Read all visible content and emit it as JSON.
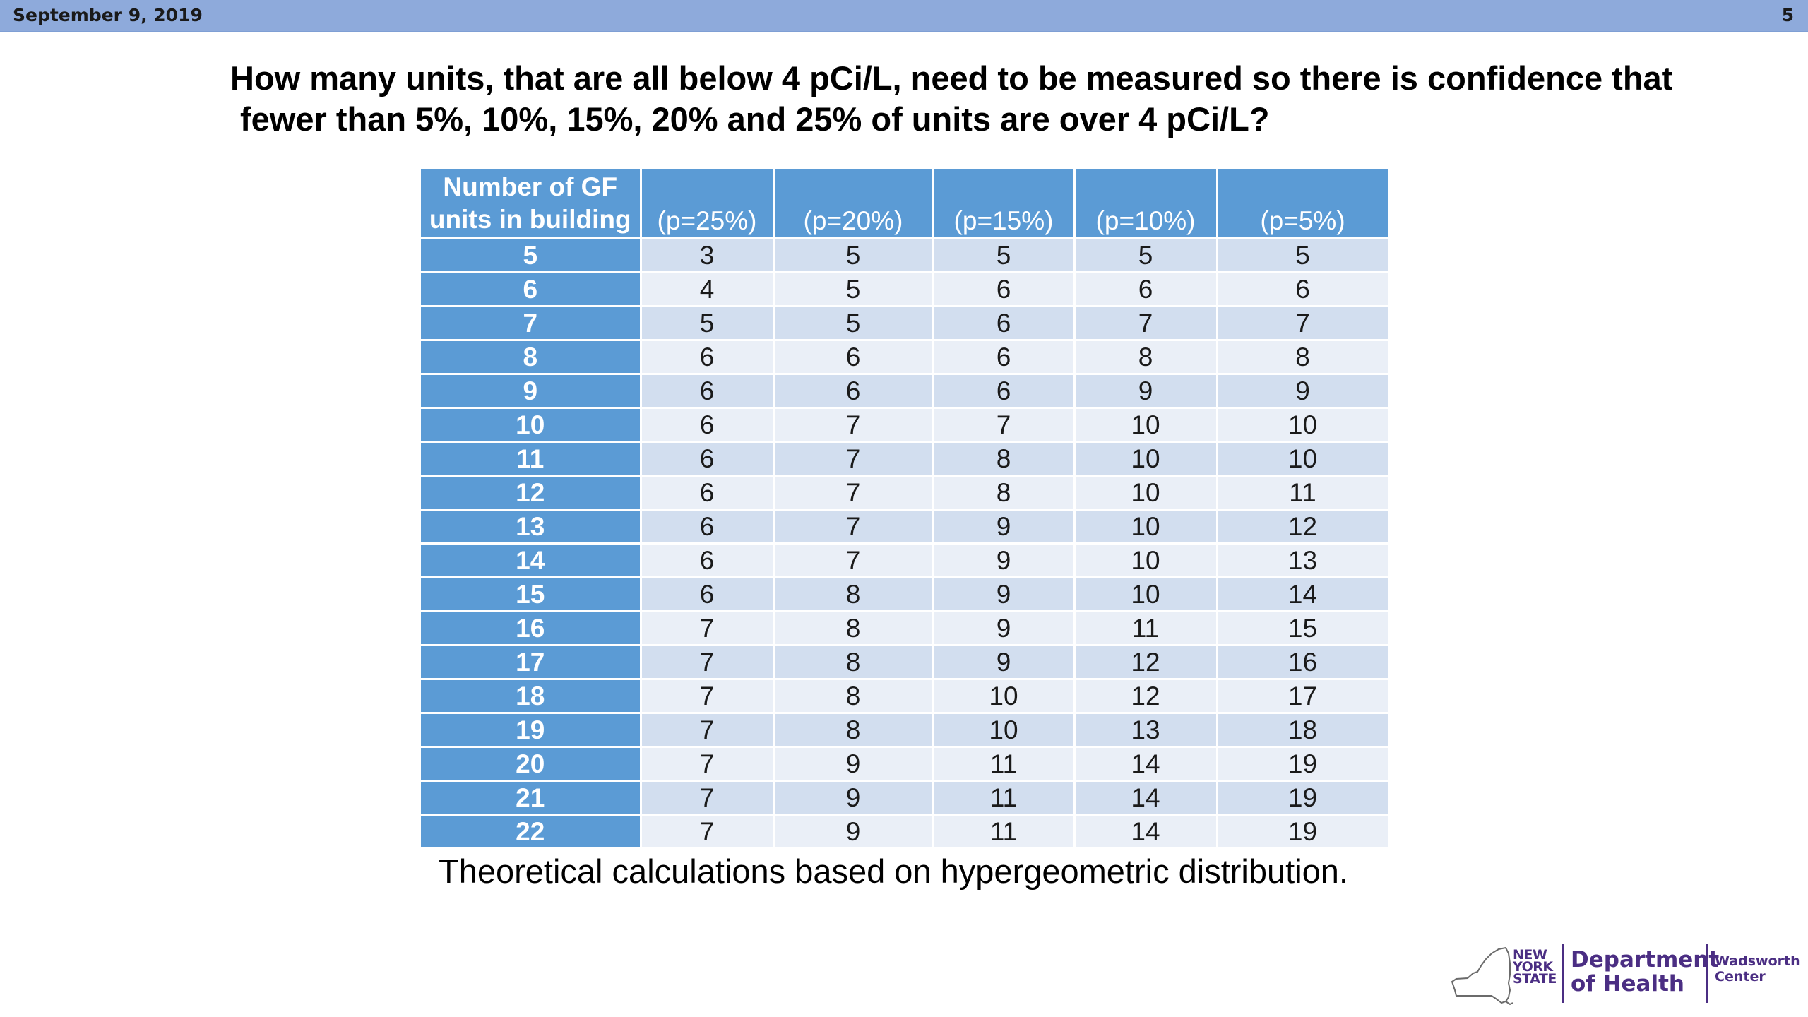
{
  "header": {
    "date": "September 9, 2019",
    "page_number": "5"
  },
  "title": {
    "line1": "How many units, that are all below 4 pCi/L, need to be measured so there is confidence that",
    "line2": "fewer than 5%, 10%, 15%, 20% and 25% of units are over 4 pCi/L?"
  },
  "table": {
    "headers": {
      "first_line1": "Number of GF",
      "first_line2": "units in building",
      "p25": "(p=25%)",
      "p20": "(p=20%)",
      "p15": "(p=15%)",
      "p10": "(p=10%)",
      "p5": "(p=5%)"
    },
    "rows": [
      [
        "5",
        "3",
        "5",
        "5",
        "5",
        "5"
      ],
      [
        "6",
        "4",
        "5",
        "6",
        "6",
        "6"
      ],
      [
        "7",
        "5",
        "5",
        "6",
        "7",
        "7"
      ],
      [
        "8",
        "6",
        "6",
        "6",
        "8",
        "8"
      ],
      [
        "9",
        "6",
        "6",
        "6",
        "9",
        "9"
      ],
      [
        "10",
        "6",
        "7",
        "7",
        "10",
        "10"
      ],
      [
        "11",
        "6",
        "7",
        "8",
        "10",
        "10"
      ],
      [
        "12",
        "6",
        "7",
        "8",
        "10",
        "11"
      ],
      [
        "13",
        "6",
        "7",
        "9",
        "10",
        "12"
      ],
      [
        "14",
        "6",
        "7",
        "9",
        "10",
        "13"
      ],
      [
        "15",
        "6",
        "8",
        "9",
        "10",
        "14"
      ],
      [
        "16",
        "7",
        "8",
        "9",
        "11",
        "15"
      ],
      [
        "17",
        "7",
        "8",
        "9",
        "12",
        "16"
      ],
      [
        "18",
        "7",
        "8",
        "10",
        "12",
        "17"
      ],
      [
        "19",
        "7",
        "8",
        "10",
        "13",
        "18"
      ],
      [
        "20",
        "7",
        "9",
        "11",
        "14",
        "19"
      ],
      [
        "21",
        "7",
        "9",
        "11",
        "14",
        "19"
      ],
      [
        "22",
        "7",
        "9",
        "11",
        "14",
        "19"
      ]
    ]
  },
  "caption": "Theoretical calculations based on hypergeometric distribution.",
  "logo": {
    "nys_line1": "NEW",
    "nys_line2": "YORK",
    "nys_line3": "STATE",
    "dept_line1": "Department",
    "dept_line2": "of Health",
    "center_line1": "Wadsworth",
    "center_line2": "Center"
  },
  "colors": {
    "topbar": "#8eaadb",
    "table_header": "#5b9bd5",
    "row_odd": "#d2deef",
    "row_even": "#eaeff7",
    "logo_purple": "#4b2e83"
  }
}
